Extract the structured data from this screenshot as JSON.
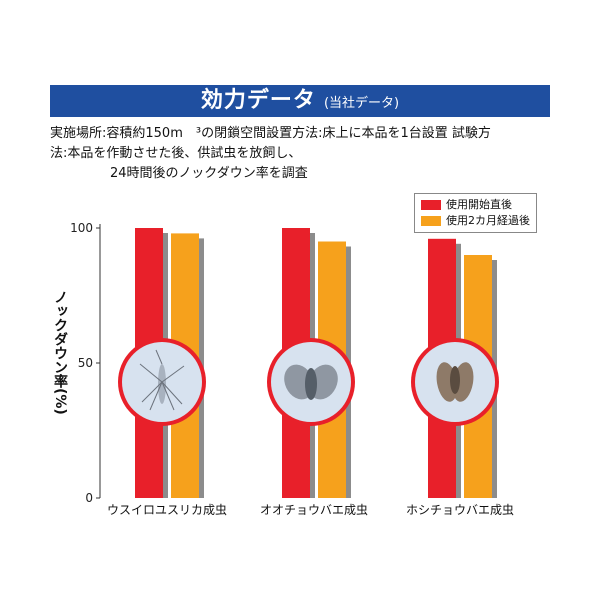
{
  "header": {
    "title": "効力データ",
    "subtitle": "(当社データ)"
  },
  "description": {
    "line1": "実施場所:容積約150m　³の閉鎖空間設置方法:床上に本品を1台設置 試験方",
    "line2": "法:本品を作動させた後、供試虫を放飼し、",
    "line3": "24時間後のノックダウン率を調査"
  },
  "colors": {
    "header": "#1f4fa0",
    "red": "#e8202a",
    "orange": "#f6a11c",
    "shadow": "#8c8c8c"
  },
  "chart_data": {
    "type": "bar",
    "categories": [
      "ウスイロユスリカ成虫",
      "オオチョウバエ成虫",
      "ホシチョウバエ成虫"
    ],
    "series": [
      {
        "name": "使用開始直後",
        "values": [
          100,
          100,
          96
        ]
      },
      {
        "name": "使用2カ月経過後",
        "values": [
          98,
          95,
          90
        ]
      }
    ],
    "ylabel": "ノックダウン率(%)",
    "yticks": [
      "0",
      "50",
      "100"
    ],
    "ylim": [
      0,
      100
    ],
    "legend_position": "top-right",
    "images": [
      "ウスイロユスリカ",
      "オオチョウバエ",
      "ホシチョウバエ"
    ]
  }
}
